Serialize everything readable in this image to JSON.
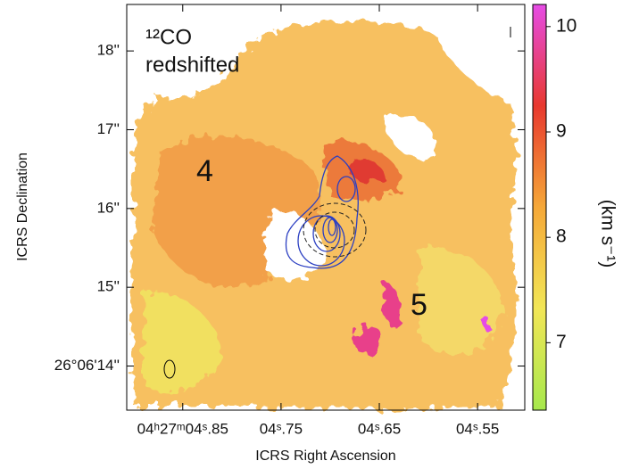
{
  "chart_data": {
    "type": "map",
    "annotations": [
      "¹²CO",
      "redshifted",
      "4",
      "5"
    ],
    "x_label": "ICRS Right Ascension",
    "y_label": "ICRS Declination",
    "xlim": [
      4.907,
      4.502
    ],
    "xticks": [
      {
        "value": 4.85,
        "label": "04ʰ27ᵐ04ˢ.85"
      },
      {
        "value": 4.75,
        "label": "04ˢ.75"
      },
      {
        "value": 4.65,
        "label": "04ˢ.65"
      },
      {
        "value": 4.55,
        "label": "04ˢ.55"
      }
    ],
    "ylim": [
      13.44,
      18.59
    ],
    "yticks": [
      {
        "value": 14,
        "label": "26°06'14''"
      },
      {
        "value": 15,
        "label": "15''"
      },
      {
        "value": 16,
        "label": "16''"
      },
      {
        "value": 17,
        "label": "17''"
      },
      {
        "value": 18,
        "label": "18''"
      }
    ],
    "colorbar": {
      "label": "(km s⁻¹)",
      "lim": [
        6.36,
        10.21
      ],
      "ticks": [
        7,
        8,
        9,
        10
      ],
      "colors": [
        "#a6e84c",
        "#f2e656",
        "#f5a838",
        "#e8382e",
        "#e64ce6"
      ]
    }
  }
}
